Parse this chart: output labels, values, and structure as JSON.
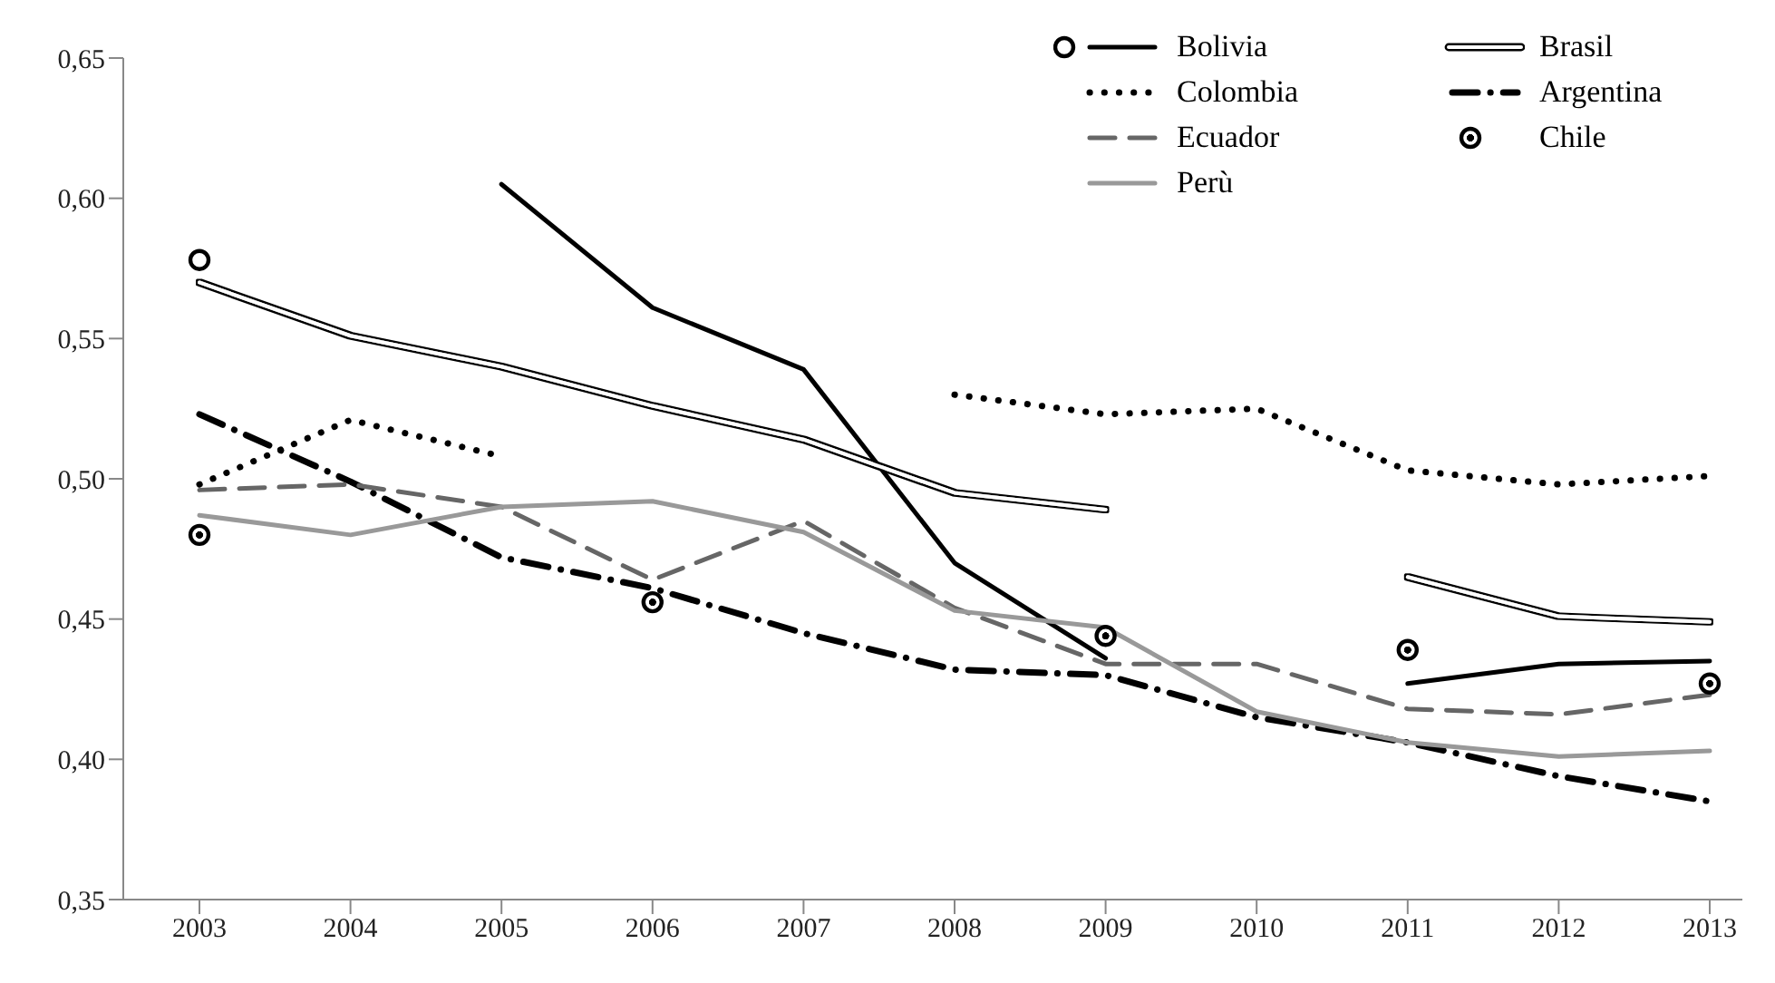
{
  "chart_data": {
    "type": "line",
    "categories": [
      "2003",
      "2004",
      "2005",
      "2006",
      "2007",
      "2008",
      "2009",
      "2010",
      "2011",
      "2012",
      "2013"
    ],
    "ylim": [
      0.35,
      0.65
    ],
    "yticks": [
      {
        "value": 0.35,
        "label": "0,35"
      },
      {
        "value": 0.4,
        "label": "0,40"
      },
      {
        "value": 0.45,
        "label": "0,45"
      },
      {
        "value": 0.5,
        "label": "0,50"
      },
      {
        "value": 0.55,
        "label": "0,55"
      },
      {
        "value": 0.6,
        "label": "0,60"
      },
      {
        "value": 0.65,
        "label": "0,65"
      }
    ],
    "grid": false,
    "legend": "top right",
    "series": [
      {
        "name": "Bolivia",
        "color": "#000000",
        "line_style": "solid",
        "values": [
          0.578,
          null,
          0.605,
          0.561,
          0.539,
          0.47,
          0.436,
          null,
          0.427,
          0.434,
          0.435
        ]
      },
      {
        "name": "Brasil",
        "color": "#ffffff",
        "line_style": "solid",
        "values": [
          0.57,
          0.551,
          0.54,
          0.526,
          0.514,
          0.495,
          0.489,
          null,
          0.465,
          0.451,
          0.449
        ]
      },
      {
        "name": "Colombia",
        "color": "#000000",
        "line_style": "dotted",
        "values": [
          0.498,
          0.521,
          0.508,
          null,
          null,
          0.53,
          0.523,
          0.525,
          0.503,
          0.498,
          0.501
        ]
      },
      {
        "name": "Argentina",
        "color": "#000000",
        "line_style": "dashdot",
        "values": [
          0.523,
          0.499,
          0.472,
          0.461,
          0.445,
          0.432,
          0.43,
          0.415,
          0.406,
          0.394,
          0.385
        ]
      },
      {
        "name": "Ecuador",
        "color": "#666666",
        "line_style": "dashed",
        "values": [
          0.496,
          0.498,
          0.49,
          0.464,
          0.485,
          0.454,
          0.434,
          0.434,
          0.418,
          0.416,
          0.423
        ]
      },
      {
        "name": "Chile",
        "color": "#000000",
        "type": "scatter",
        "marker": "circle",
        "values": [
          0.48,
          null,
          null,
          0.456,
          null,
          null,
          0.444,
          null,
          0.439,
          null,
          0.427
        ]
      },
      {
        "name": "Perù",
        "color": "#999999",
        "line_style": "solid",
        "values": [
          0.487,
          0.48,
          0.49,
          0.492,
          0.481,
          0.453,
          0.447,
          0.417,
          0.406,
          0.401,
          0.403
        ]
      }
    ]
  }
}
